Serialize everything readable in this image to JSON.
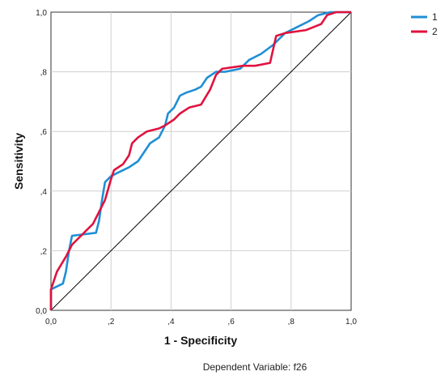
{
  "chart_data": {
    "type": "line",
    "title": "",
    "xlabel": "1 - Specificity",
    "ylabel": "Sensitivity",
    "footnote": "Dependent Variable: f26",
    "xlim": [
      0,
      1
    ],
    "ylim": [
      0,
      1
    ],
    "x_ticks": [
      "0,0",
      ",2",
      ",4",
      ",6",
      ",8",
      "1,0"
    ],
    "y_ticks": [
      "0,0",
      ",2",
      ",4",
      ",6",
      ",8",
      "1,0"
    ],
    "grid": true,
    "legend_position": "top-right",
    "reference_line": {
      "from": [
        0,
        0
      ],
      "to": [
        1,
        1
      ],
      "color": "#000000"
    },
    "series": [
      {
        "name": "1",
        "color": "#1f8fd6",
        "points": [
          [
            0,
            0
          ],
          [
            0,
            0.07
          ],
          [
            0.04,
            0.09
          ],
          [
            0.05,
            0.13
          ],
          [
            0.06,
            0.2
          ],
          [
            0.07,
            0.25
          ],
          [
            0.15,
            0.26
          ],
          [
            0.16,
            0.3
          ],
          [
            0.17,
            0.37
          ],
          [
            0.18,
            0.43
          ],
          [
            0.2,
            0.45
          ],
          [
            0.22,
            0.46
          ],
          [
            0.26,
            0.48
          ],
          [
            0.29,
            0.5
          ],
          [
            0.31,
            0.53
          ],
          [
            0.33,
            0.56
          ],
          [
            0.36,
            0.58
          ],
          [
            0.38,
            0.62
          ],
          [
            0.39,
            0.66
          ],
          [
            0.41,
            0.68
          ],
          [
            0.43,
            0.72
          ],
          [
            0.45,
            0.73
          ],
          [
            0.48,
            0.74
          ],
          [
            0.5,
            0.75
          ],
          [
            0.52,
            0.78
          ],
          [
            0.55,
            0.8
          ],
          [
            0.58,
            0.8
          ],
          [
            0.63,
            0.81
          ],
          [
            0.66,
            0.84
          ],
          [
            0.7,
            0.86
          ],
          [
            0.74,
            0.89
          ],
          [
            0.78,
            0.93
          ],
          [
            0.82,
            0.95
          ],
          [
            0.86,
            0.97
          ],
          [
            0.89,
            0.99
          ],
          [
            0.93,
            1.0
          ],
          [
            1.0,
            1.0
          ]
        ]
      },
      {
        "name": "2",
        "color": "#e0123e",
        "points": [
          [
            0,
            0
          ],
          [
            0,
            0.07
          ],
          [
            0.01,
            0.1
          ],
          [
            0.02,
            0.13
          ],
          [
            0.05,
            0.18
          ],
          [
            0.07,
            0.22
          ],
          [
            0.1,
            0.25
          ],
          [
            0.14,
            0.29
          ],
          [
            0.16,
            0.33
          ],
          [
            0.18,
            0.37
          ],
          [
            0.2,
            0.44
          ],
          [
            0.21,
            0.47
          ],
          [
            0.24,
            0.49
          ],
          [
            0.26,
            0.52
          ],
          [
            0.27,
            0.56
          ],
          [
            0.29,
            0.58
          ],
          [
            0.32,
            0.6
          ],
          [
            0.36,
            0.61
          ],
          [
            0.38,
            0.62
          ],
          [
            0.41,
            0.64
          ],
          [
            0.43,
            0.66
          ],
          [
            0.46,
            0.68
          ],
          [
            0.5,
            0.69
          ],
          [
            0.53,
            0.74
          ],
          [
            0.55,
            0.79
          ],
          [
            0.57,
            0.81
          ],
          [
            0.64,
            0.82
          ],
          [
            0.68,
            0.82
          ],
          [
            0.73,
            0.83
          ],
          [
            0.75,
            0.92
          ],
          [
            0.78,
            0.93
          ],
          [
            0.85,
            0.94
          ],
          [
            0.9,
            0.96
          ],
          [
            0.92,
            0.99
          ],
          [
            0.95,
            1.0
          ],
          [
            1.0,
            1.0
          ]
        ]
      }
    ]
  }
}
